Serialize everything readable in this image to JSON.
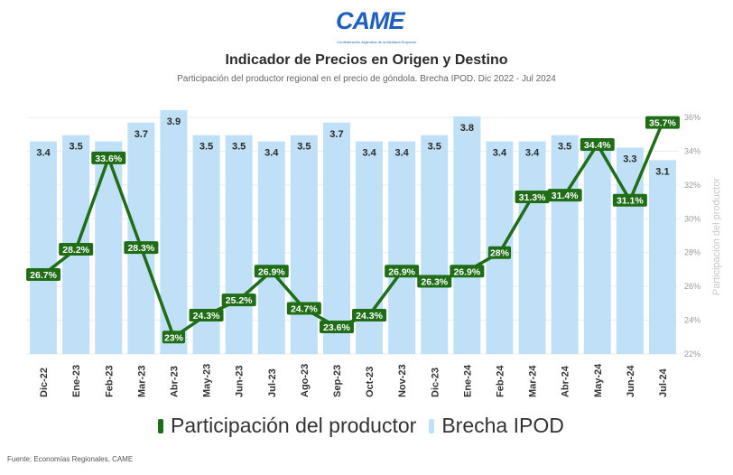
{
  "logo": {
    "word": "CAME",
    "tagline": "Confederación Argentina de la Mediana Empresa"
  },
  "title": "Indicador de Precios en Origen y Destino",
  "subtitle": "Participación del productor regional en el precio de góndola. Brecha IPOD. Dic 2022 - Jul 2024",
  "source": "Fuente: Economías Regionales, CAME",
  "colors": {
    "bar": "#bfe0f7",
    "line": "#1f6d16",
    "label_fill": "#1f6d16",
    "label_text": "#ffffff"
  },
  "legend": {
    "line_label": "Participación del productor",
    "bar_label": "Brecha IPOD"
  },
  "chart_data": {
    "type": "bar+line",
    "categories": [
      "Dic-22",
      "Ene-23",
      "Feb-23",
      "Mar-23",
      "Abr-23",
      "May-23",
      "Jun-23",
      "Jul-23",
      "Ago-23",
      "Sep-23",
      "Oct-23",
      "Nov-23",
      "Dic-23",
      "Ene-24",
      "Feb-24",
      "Mar-24",
      "Abr-24",
      "May-24",
      "Jun-24",
      "Jul-24"
    ],
    "series": [
      {
        "name": "Brecha IPOD",
        "type": "bar",
        "values": [
          3.4,
          3.5,
          3.4,
          3.7,
          3.9,
          3.5,
          3.5,
          3.4,
          3.5,
          3.7,
          3.4,
          3.4,
          3.5,
          3.8,
          3.4,
          3.4,
          3.5,
          3.4,
          3.3,
          3.1
        ],
        "labels": [
          "3.4",
          "3.5",
          "",
          "3.7",
          "3.9",
          "3.5",
          "3.5",
          "3.4",
          "3.5",
          "3.7",
          "3.4",
          "3.4",
          "3.5",
          "3.8",
          "3.4",
          "3.4",
          "3.5",
          "",
          "3.3",
          "3.1"
        ]
      },
      {
        "name": "Participación del productor",
        "type": "line",
        "axis": "right",
        "values": [
          26.7,
          28.2,
          33.6,
          28.3,
          23,
          24.3,
          25.2,
          26.9,
          24.7,
          23.6,
          24.3,
          26.9,
          26.3,
          26.9,
          28,
          31.3,
          31.4,
          34.4,
          31.1,
          35.7
        ],
        "labels": [
          "26.7%",
          "28.2%",
          "33.6%",
          "28.3%",
          "23%",
          "24.3%",
          "25.2%",
          "26.9%",
          "24.7%",
          "23.6%",
          "24.3%",
          "26.9%",
          "26.3%",
          "26.9%",
          "28%",
          "31.3%",
          "31.4%",
          "34.4%",
          "31.1%",
          "35.7%"
        ]
      }
    ],
    "y_right": {
      "label": "Participación del productor",
      "range": [
        22,
        36
      ],
      "ticks": [
        "22%",
        "24%",
        "26%",
        "28%",
        "30%",
        "32%",
        "34%",
        "36%"
      ]
    },
    "y_left_range": [
      0,
      4.0
    ],
    "grid": true,
    "legend_position": "bottom"
  }
}
